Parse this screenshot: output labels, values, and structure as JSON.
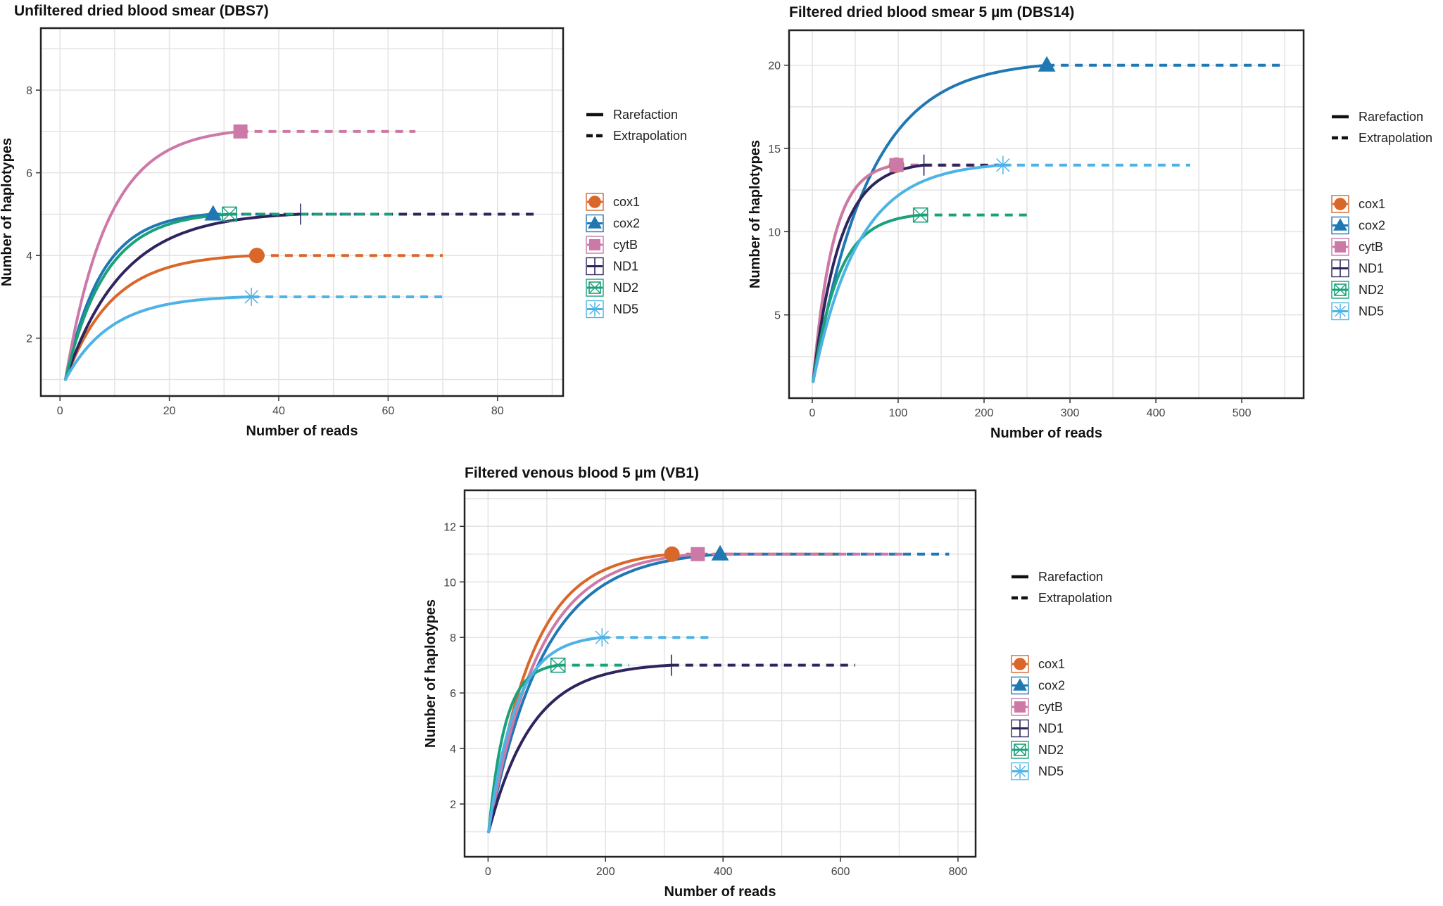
{
  "legend": {
    "line_types": [
      {
        "key": "rarefaction",
        "label": "Rarefaction"
      },
      {
        "key": "extrapolation",
        "label": "Extrapolation"
      }
    ],
    "genes": [
      {
        "name": "cox1",
        "color": "#D9672A",
        "shape": "circle"
      },
      {
        "name": "cox2",
        "color": "#1F77B4",
        "shape": "triangle"
      },
      {
        "name": "cytB",
        "color": "#CC79A7",
        "shape": "square"
      },
      {
        "name": "ND1",
        "color": "#2E245E",
        "shape": "plus"
      },
      {
        "name": "ND2",
        "color": "#1AA17A",
        "shape": "box-x"
      },
      {
        "name": "ND5",
        "color": "#4DB3E6",
        "shape": "asterisk"
      }
    ]
  },
  "chart_data": [
    {
      "type": "line",
      "id": "dbs7",
      "title": "Unfiltered dried blood smear (DBS7)",
      "xlabel": "Number of reads",
      "ylabel": "Number of haplotypes",
      "xlim": [
        -3.5,
        92
      ],
      "ylim": [
        0.6,
        9.5
      ],
      "xticks": [
        0,
        20,
        40,
        60,
        80
      ],
      "yticks": [
        2,
        4,
        6,
        8
      ],
      "x_gridlines": [
        0,
        10,
        20,
        30,
        40,
        50,
        60,
        70,
        80,
        90
      ],
      "y_gridlines": [
        1,
        2,
        3,
        4,
        5,
        6,
        7,
        8,
        9
      ],
      "grid": true,
      "series": [
        {
          "name": "cox1",
          "observed_reads": 36,
          "observed_haplotypes": 4,
          "extrapolated_to": 70
        },
        {
          "name": "cox2",
          "observed_reads": 28,
          "observed_haplotypes": 5,
          "extrapolated_to": 56
        },
        {
          "name": "cytB",
          "observed_reads": 33,
          "observed_haplotypes": 7,
          "extrapolated_to": 65
        },
        {
          "name": "ND1",
          "observed_reads": 44,
          "observed_haplotypes": 5,
          "extrapolated_to": 87
        },
        {
          "name": "ND2",
          "observed_reads": 31,
          "observed_haplotypes": 5,
          "extrapolated_to": 62
        },
        {
          "name": "ND5",
          "observed_reads": 35,
          "observed_haplotypes": 3,
          "extrapolated_to": 70
        }
      ]
    },
    {
      "type": "line",
      "id": "dbs14",
      "title": "Filtered dried blood smear 5 µm (DBS14)",
      "xlabel": "Number of reads",
      "ylabel": "Number of haplotypes",
      "xlim": [
        -27,
        572
      ],
      "ylim": [
        0,
        22.1
      ],
      "xticks": [
        0,
        100,
        200,
        300,
        400,
        500
      ],
      "yticks": [
        5,
        10,
        15,
        20
      ],
      "x_gridlines": [
        0,
        50,
        100,
        150,
        200,
        250,
        300,
        350,
        400,
        450,
        500,
        550
      ],
      "y_gridlines": [
        2.5,
        5,
        7.5,
        10,
        12.5,
        15,
        17.5,
        20
      ],
      "grid": true,
      "series": [
        {
          "name": "cox1",
          "observed_reads": 98,
          "observed_haplotypes": 14,
          "extrapolated_to": 196
        },
        {
          "name": "cox2",
          "observed_reads": 273,
          "observed_haplotypes": 20,
          "extrapolated_to": 546
        },
        {
          "name": "cytB",
          "observed_reads": 98,
          "observed_haplotypes": 14,
          "extrapolated_to": 196
        },
        {
          "name": "ND1",
          "observed_reads": 130,
          "observed_haplotypes": 14,
          "extrapolated_to": 218
        },
        {
          "name": "ND2",
          "observed_reads": 126,
          "observed_haplotypes": 11,
          "extrapolated_to": 250
        },
        {
          "name": "ND5",
          "observed_reads": 222,
          "observed_haplotypes": 14,
          "extrapolated_to": 440
        }
      ]
    },
    {
      "type": "line",
      "id": "vb1",
      "title": "Filtered venous blood 5 µm (VB1)",
      "xlabel": "Number of reads",
      "ylabel": "Number of haplotypes",
      "xlim": [
        -40,
        830
      ],
      "ylim": [
        0.1,
        13.3
      ],
      "xticks": [
        0,
        200,
        400,
        600,
        800
      ],
      "yticks": [
        2,
        4,
        6,
        8,
        10,
        12
      ],
      "x_gridlines": [
        0,
        100,
        200,
        300,
        400,
        500,
        600,
        700,
        800
      ],
      "y_gridlines": [
        1,
        2,
        3,
        4,
        5,
        6,
        7,
        8,
        9,
        10,
        11,
        12,
        13
      ],
      "grid": true,
      "series": [
        {
          "name": "cox1",
          "observed_reads": 313,
          "observed_haplotypes": 11,
          "extrapolated_to": 600
        },
        {
          "name": "cox2",
          "observed_reads": 395,
          "observed_haplotypes": 11,
          "extrapolated_to": 785
        },
        {
          "name": "cytB",
          "observed_reads": 357,
          "observed_haplotypes": 11,
          "extrapolated_to": 710
        },
        {
          "name": "ND1",
          "observed_reads": 312,
          "observed_haplotypes": 7,
          "extrapolated_to": 625
        },
        {
          "name": "ND2",
          "observed_reads": 119,
          "observed_haplotypes": 7,
          "extrapolated_to": 240
        },
        {
          "name": "ND5",
          "observed_reads": 194,
          "observed_haplotypes": 8,
          "extrapolated_to": 385
        }
      ]
    }
  ]
}
